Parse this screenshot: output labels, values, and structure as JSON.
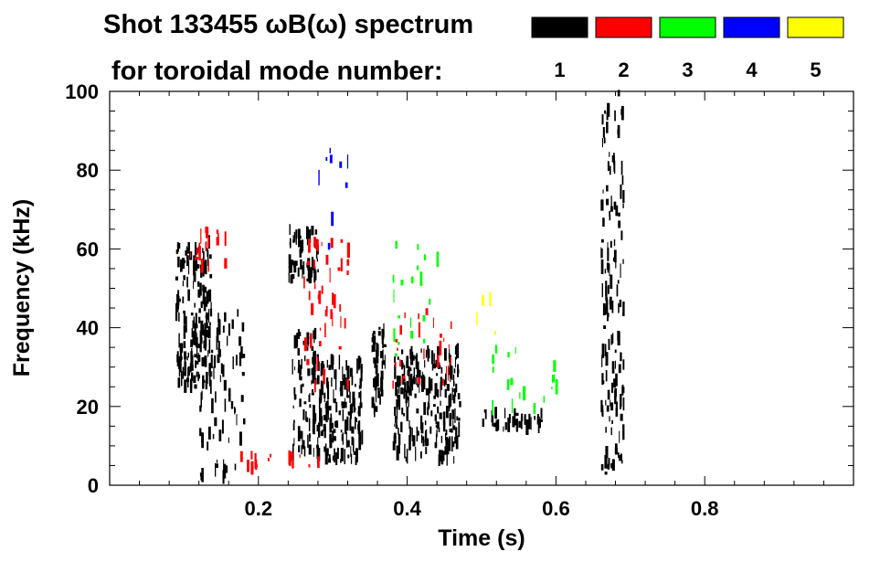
{
  "chart_data": {
    "type": "spectrogram",
    "title_line1": "Shot 133455 ωB(ω) spectrum",
    "title_line2": "for toroidal mode number:",
    "xlabel": "Time (s)",
    "ylabel": "Frequency (kHz)",
    "xlim": [
      0.0,
      1.0
    ],
    "ylim": [
      0,
      100
    ],
    "x_ticks": [
      "0.2",
      "0.4",
      "0.6",
      "0.8"
    ],
    "y_ticks": [
      "0",
      "20",
      "40",
      "60",
      "80",
      "100"
    ],
    "legend": [
      {
        "label": "1",
        "color": "#000000"
      },
      {
        "label": "2",
        "color": "#ff0000"
      },
      {
        "label": "3",
        "color": "#00ff00"
      },
      {
        "label": "4",
        "color": "#0000ff"
      },
      {
        "label": "5",
        "color": "#ffff00"
      }
    ],
    "regions": [
      {
        "mode": 1,
        "x": [
          0.088,
          0.135
        ],
        "y": [
          25,
          62
        ],
        "density": 0.55
      },
      {
        "mode": 1,
        "x": [
          0.12,
          0.18
        ],
        "y": [
          2,
          45
        ],
        "density": 0.15
      },
      {
        "mode": 1,
        "x": [
          0.24,
          0.28
        ],
        "y": [
          52,
          65
        ],
        "density": 0.6
      },
      {
        "mode": 1,
        "x": [
          0.245,
          0.275
        ],
        "y": [
          8,
          40
        ],
        "density": 0.35
      },
      {
        "mode": 1,
        "x": [
          0.27,
          0.34
        ],
        "y": [
          6,
          32
        ],
        "density": 0.45
      },
      {
        "mode": 1,
        "x": [
          0.35,
          0.37
        ],
        "y": [
          18,
          40
        ],
        "density": 0.5
      },
      {
        "mode": 1,
        "x": [
          0.38,
          0.47
        ],
        "y": [
          6,
          35
        ],
        "density": 0.45
      },
      {
        "mode": 1,
        "x": [
          0.5,
          0.58
        ],
        "y": [
          14,
          19
        ],
        "density": 0.5
      },
      {
        "mode": 1,
        "x": [
          0.66,
          0.69
        ],
        "y": [
          3,
          100
        ],
        "density": 0.25
      },
      {
        "mode": 2,
        "x": [
          0.1,
          0.16
        ],
        "y": [
          55,
          65
        ],
        "density": 0.15
      },
      {
        "mode": 2,
        "x": [
          0.17,
          0.28
        ],
        "y": [
          4,
          8
        ],
        "density": 0.2
      },
      {
        "mode": 2,
        "x": [
          0.26,
          0.32
        ],
        "y": [
          25,
          62
        ],
        "density": 0.1
      },
      {
        "mode": 2,
        "x": [
          0.38,
          0.46
        ],
        "y": [
          25,
          45
        ],
        "density": 0.08
      },
      {
        "mode": 3,
        "x": [
          0.38,
          0.44
        ],
        "y": [
          30,
          62
        ],
        "density": 0.05
      },
      {
        "mode": 3,
        "x": [
          0.5,
          0.6
        ],
        "y": [
          18,
          35
        ],
        "density": 0.05
      },
      {
        "mode": 4,
        "x": [
          0.26,
          0.34
        ],
        "y": [
          60,
          88
        ],
        "density": 0.02
      },
      {
        "mode": 5,
        "x": [
          0.48,
          0.52
        ],
        "y": [
          38,
          50
        ],
        "density": 0.02
      }
    ]
  }
}
